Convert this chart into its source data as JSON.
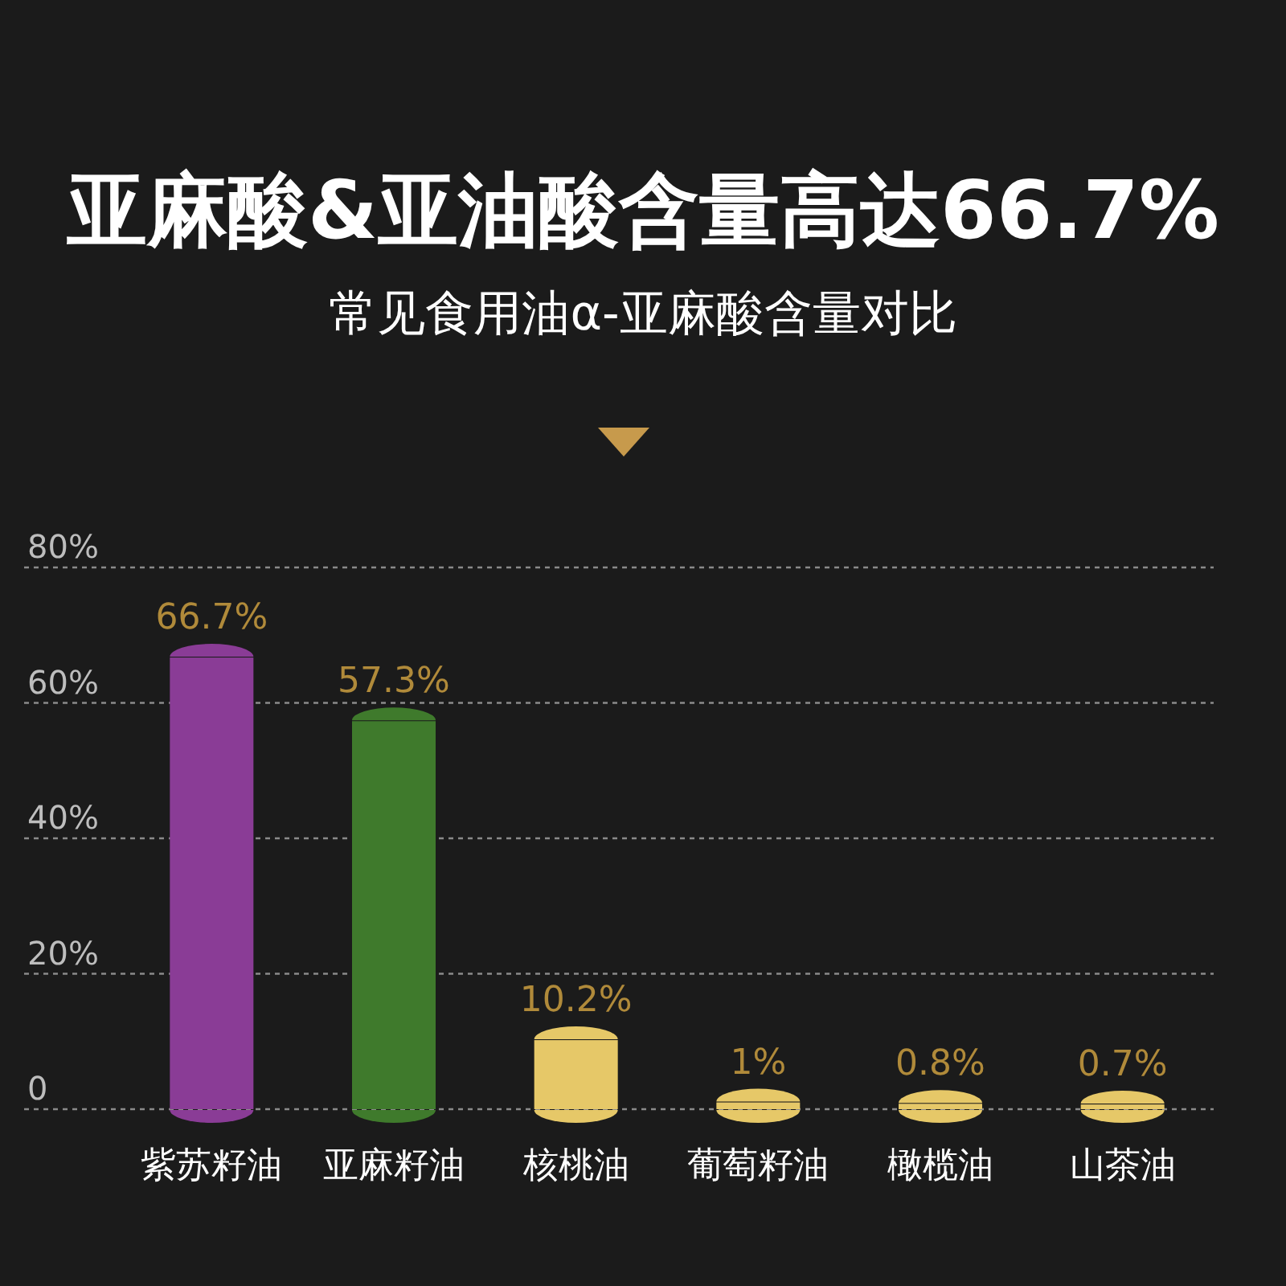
{
  "chart_data": {
    "type": "bar",
    "title": "亚麻酸&亚油酸含量高达66.7%",
    "subtitle": "常见食用油α-亚麻酸含量对比",
    "categories": [
      "紫苏籽油",
      "亚麻籽油",
      "核桃油",
      "葡萄籽油",
      "橄榄油",
      "山茶油"
    ],
    "values": [
      66.7,
      57.3,
      10.2,
      1,
      0.8,
      0.7
    ],
    "colors": [
      "#8a3c96",
      "#3f7a2c",
      "#e6c868",
      "#e6c868",
      "#e6c868",
      "#e6c868"
    ],
    "value_labels": [
      "66.7%",
      "57.3%",
      "10.2%",
      "1%",
      "0.8%",
      "0.7%"
    ],
    "ylim": [
      0,
      80
    ],
    "yticks": [
      0,
      {
        "value": 20,
        "label": "20%"
      },
      {
        "value": 40,
        "label": "40%"
      },
      {
        "value": 60,
        "label": "60%"
      },
      {
        "value": 80,
        "label": "80%"
      }
    ],
    "grid": "y"
  }
}
